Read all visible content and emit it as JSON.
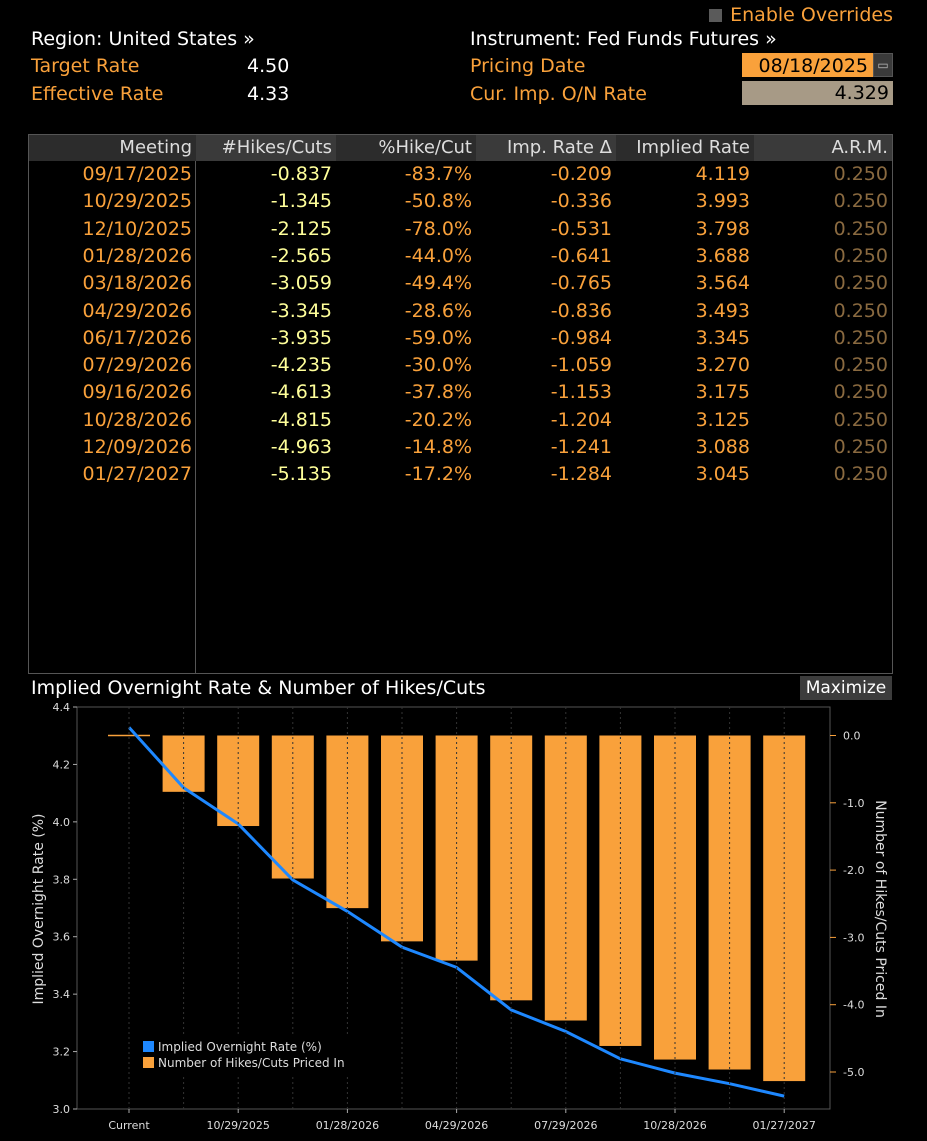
{
  "header": {
    "override_label": "Enable Overrides",
    "region_label": "Region: United States »",
    "instrument_label": "Instrument: Fed Funds Futures »",
    "target_rate_label": "Target Rate",
    "target_rate_value": "4.50",
    "effective_rate_label": "Effective Rate",
    "effective_rate_value": "4.33",
    "pricing_date_label": "Pricing Date",
    "pricing_date_value": "08/18/2025",
    "onrate_label": "Cur. Imp. O/N Rate",
    "onrate_value": "4.329"
  },
  "table": {
    "columns": [
      "Meeting",
      "#Hikes/Cuts",
      "%Hike/Cut",
      "Imp. Rate Δ",
      "Implied Rate",
      "A.R.M."
    ],
    "rows": [
      [
        "09/17/2025",
        "-0.837",
        "-83.7%",
        "-0.209",
        "4.119",
        "0.250"
      ],
      [
        "10/29/2025",
        "-1.345",
        "-50.8%",
        "-0.336",
        "3.993",
        "0.250"
      ],
      [
        "12/10/2025",
        "-2.125",
        "-78.0%",
        "-0.531",
        "3.798",
        "0.250"
      ],
      [
        "01/28/2026",
        "-2.565",
        "-44.0%",
        "-0.641",
        "3.688",
        "0.250"
      ],
      [
        "03/18/2026",
        "-3.059",
        "-49.4%",
        "-0.765",
        "3.564",
        "0.250"
      ],
      [
        "04/29/2026",
        "-3.345",
        "-28.6%",
        "-0.836",
        "3.493",
        "0.250"
      ],
      [
        "06/17/2026",
        "-3.935",
        "-59.0%",
        "-0.984",
        "3.345",
        "0.250"
      ],
      [
        "07/29/2026",
        "-4.235",
        "-30.0%",
        "-1.059",
        "3.270",
        "0.250"
      ],
      [
        "09/16/2026",
        "-4.613",
        "-37.8%",
        "-1.153",
        "3.175",
        "0.250"
      ],
      [
        "10/28/2026",
        "-4.815",
        "-20.2%",
        "-1.204",
        "3.125",
        "0.250"
      ],
      [
        "12/09/2026",
        "-4.963",
        "-14.8%",
        "-1.241",
        "3.088",
        "0.250"
      ],
      [
        "01/27/2027",
        "-5.135",
        "-17.2%",
        "-1.284",
        "3.045",
        "0.250"
      ]
    ]
  },
  "chart_panel": {
    "title": "Implied Overnight Rate & Number of Hikes/Cuts",
    "maximize_label": "Maximize"
  },
  "colors": {
    "accent": "#f9a13b",
    "line": "#1e88ff",
    "background": "#000000"
  },
  "chart_data": {
    "type": "bar+line",
    "categories": [
      "Current",
      "09/17/2025",
      "10/29/2025",
      "12/10/2025",
      "01/28/2026",
      "03/18/2026",
      "04/29/2026",
      "06/17/2026",
      "07/29/2026",
      "09/16/2026",
      "10/28/2026",
      "12/09/2026",
      "01/27/2027"
    ],
    "x_tick_labels": [
      {
        "index": 0,
        "label": "Current"
      },
      {
        "index": 2,
        "label": "10/29/2025"
      },
      {
        "index": 4,
        "label": "01/28/2026"
      },
      {
        "index": 6,
        "label": "04/29/2026"
      },
      {
        "index": 8,
        "label": "07/29/2026"
      },
      {
        "index": 10,
        "label": "10/28/2026"
      },
      {
        "index": 12,
        "label": "01/27/2027"
      }
    ],
    "series": [
      {
        "name": "Implied Overnight Rate (%)",
        "axis": "left",
        "type": "line",
        "values": [
          4.329,
          4.119,
          3.993,
          3.798,
          3.688,
          3.564,
          3.493,
          3.345,
          3.27,
          3.175,
          3.125,
          3.088,
          3.045
        ]
      },
      {
        "name": "Number of Hikes/Cuts Priced In",
        "axis": "right",
        "type": "bar",
        "values": [
          0,
          -0.837,
          -1.345,
          -2.125,
          -2.565,
          -3.059,
          -3.345,
          -3.935,
          -4.235,
          -4.613,
          -4.815,
          -4.963,
          -5.135
        ]
      }
    ],
    "left_axis": {
      "label": "Implied Overnight Rate (%)",
      "ylim": [
        3.0,
        4.4
      ],
      "ticks": [
        "3.0",
        "3.2",
        "3.4",
        "3.6",
        "3.8",
        "4.0",
        "4.2",
        "4.4"
      ]
    },
    "right_axis": {
      "label": "Number of Hikes/Cuts Priced In",
      "ylim": [
        -5.5,
        0.25
      ],
      "ticks": [
        "0.0",
        "-1.0",
        "-2.0",
        "-3.0",
        "-4.0",
        "-5.0"
      ]
    },
    "legend": [
      "Implied Overnight Rate (%)",
      "Number of Hikes/Cuts Priced In"
    ],
    "legend_position": "bottom-left"
  }
}
